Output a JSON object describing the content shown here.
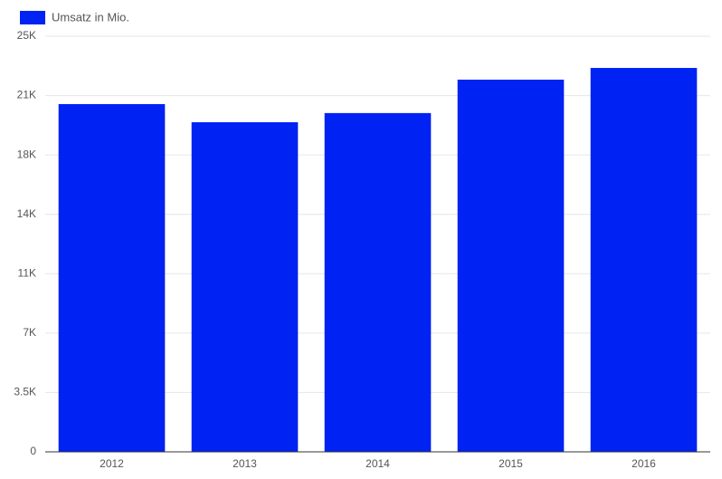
{
  "chart_data": {
    "type": "bar",
    "series": [
      {
        "name": "Umsatz in Mio.",
        "color": "#0022f2",
        "values": [
          20500,
          19430,
          19970,
          21940,
          22630
        ]
      }
    ],
    "categories": [
      "2012",
      "2013",
      "2014",
      "2015",
      "2016"
    ],
    "ylim": [
      0,
      24500
    ],
    "yticks": [
      0,
      {
        "value": 3500,
        "label": "3.5K"
      },
      {
        "value": 7000,
        "label": "7K"
      },
      {
        "value": 10500,
        "label": "11K"
      },
      {
        "value": 14000,
        "label": "14K"
      },
      {
        "value": 17500,
        "label": "18K"
      },
      {
        "value": 21000,
        "label": "21K"
      },
      {
        "value": 24500,
        "label": "25K"
      }
    ],
    "grid": true,
    "legend": "top-left"
  }
}
